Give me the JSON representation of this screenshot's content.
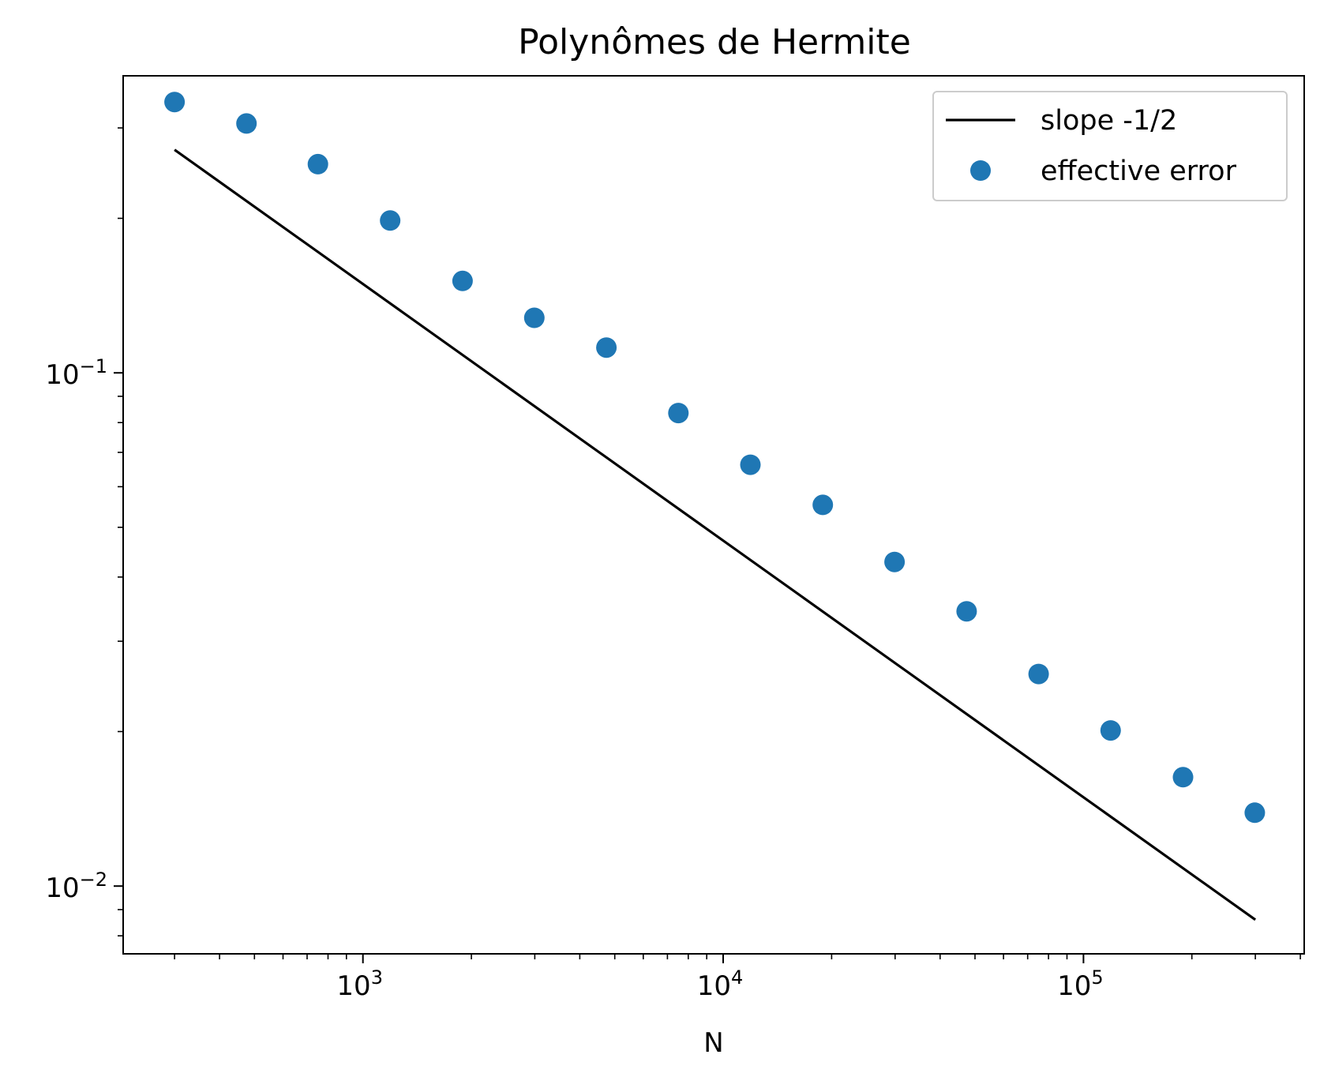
{
  "chart_data": {
    "type": "scatter",
    "title": "Polynômes de Hermite",
    "xlabel": "N",
    "ylabel": "",
    "xscale": "log",
    "yscale": "log",
    "xlim": [
      216,
      410000
    ],
    "ylim": [
      0.00738,
      0.379
    ],
    "grid": false,
    "legend_position": "top-right",
    "xticks": [
      {
        "value": 1000,
        "base": "10",
        "exp": "3"
      },
      {
        "value": 10000,
        "base": "10",
        "exp": "4"
      },
      {
        "value": 100000,
        "base": "10",
        "exp": "5"
      }
    ],
    "yticks": [
      {
        "value": 0.1,
        "base": "10",
        "exp": "−1"
      },
      {
        "value": 0.01,
        "base": "10",
        "exp": "−2"
      }
    ],
    "series": [
      {
        "name": "slope -1/2",
        "kind": "line",
        "color": "#000000",
        "x": [
          300,
          300000
        ],
        "y": [
          0.272,
          0.0086
        ]
      },
      {
        "name": "effective error",
        "kind": "scatter",
        "color": "#1f77b4",
        "x": [
          300,
          475,
          750,
          1190,
          1890,
          2990,
          4740,
          7510,
          11900,
          18900,
          29900,
          47400,
          75100,
          119000,
          189000,
          299000
        ],
        "y": [
          0.337,
          0.306,
          0.255,
          0.198,
          0.151,
          0.128,
          0.112,
          0.0835,
          0.0662,
          0.0553,
          0.0428,
          0.0343,
          0.0259,
          0.0201,
          0.0163,
          0.0139
        ]
      }
    ]
  }
}
